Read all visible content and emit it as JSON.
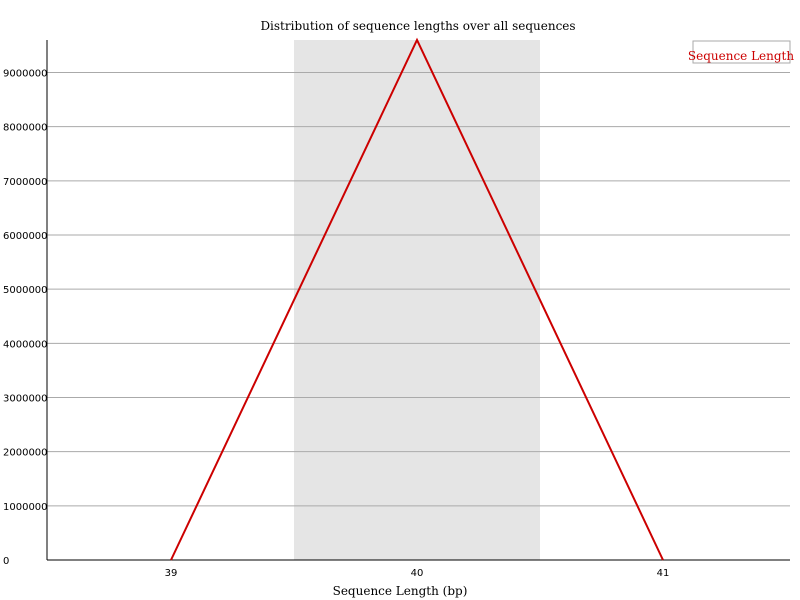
{
  "chart_data": {
    "type": "line",
    "title": "Distribution of sequence lengths over all sequences",
    "xlabel": "Sequence Length (bp)",
    "ylabel": "",
    "categories": [
      "39",
      "40",
      "41"
    ],
    "y_ticks": [
      "0",
      "1000000",
      "2000000",
      "3000000",
      "4000000",
      "5000000",
      "6000000",
      "7000000",
      "8000000",
      "9000000"
    ],
    "ylim": [
      0,
      9600000
    ],
    "grid": true,
    "highlighted_category": "40",
    "legend_position": "top-right",
    "series": [
      {
        "name": "Sequence Length",
        "color": "#cc0000",
        "values": [
          0,
          9600000,
          0
        ]
      }
    ]
  },
  "colors": {
    "line": "#cc0000",
    "band": "#e5e5e5",
    "grid": "#aaaaaa",
    "axis": "#000000"
  }
}
